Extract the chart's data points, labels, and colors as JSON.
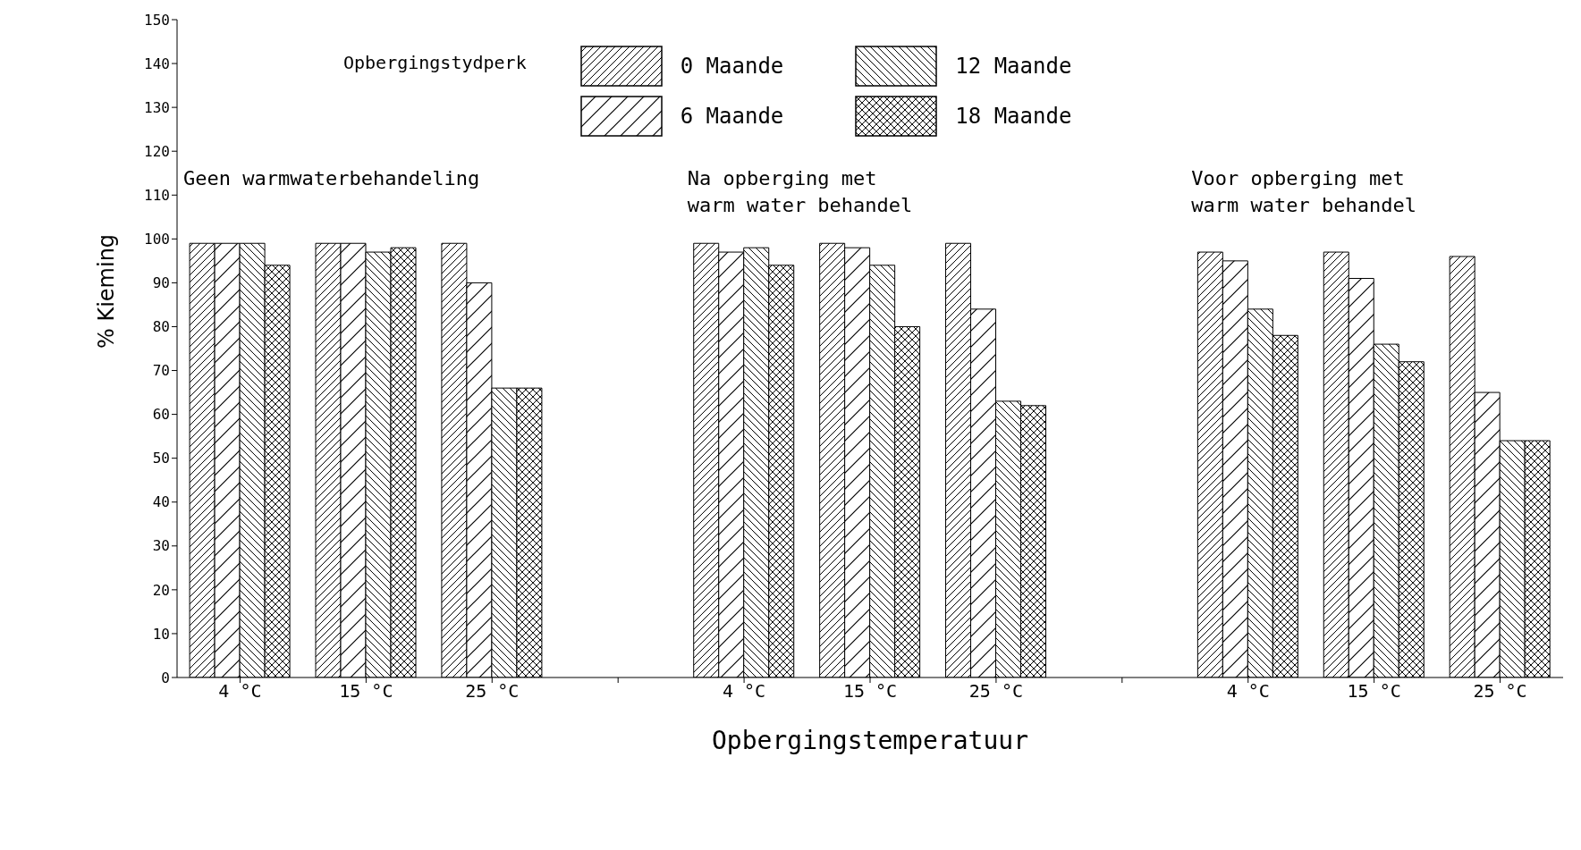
{
  "chart_data": {
    "type": "bar",
    "xlabel": "Opbergingstemperatuur",
    "ylabel": "% Kieming",
    "legend_title": "Opbergingstydperk",
    "legend": "top",
    "categories": [
      "4 °C",
      "15 °C",
      "25 °C",
      null,
      "4 °C",
      "15 °C",
      "25 °C",
      null,
      "4 °C",
      "15 °C",
      "25 °C"
    ],
    "series": [
      {
        "name": "0 Maande",
        "color": "#000000",
        "values": [
          99,
          99,
          99,
          null,
          99,
          99,
          99,
          null,
          97,
          97,
          96
        ]
      },
      {
        "name": "6 Maande",
        "color": "#000000",
        "values": [
          99,
          99,
          90,
          null,
          97,
          98,
          84,
          null,
          95,
          91,
          65
        ]
      },
      {
        "name": "12 Maande",
        "color": "#000000",
        "values": [
          99,
          97,
          66,
          null,
          98,
          94,
          63,
          null,
          84,
          76,
          54
        ]
      },
      {
        "name": "18 Maande",
        "color": "#000000",
        "values": [
          94,
          98,
          66,
          null,
          94,
          80,
          62,
          null,
          78,
          72,
          54
        ]
      }
    ],
    "annotations": [
      "Geen warmwaterbehandeling",
      "Na opberging met\nwarm water behandel",
      "Voor opberging met\nwarm water behandel"
    ],
    "ylim": [
      0,
      150
    ],
    "yticks": [
      0,
      10,
      20,
      30,
      40,
      50,
      60,
      70,
      80,
      90,
      100,
      110,
      120,
      130,
      140,
      150
    ],
    "grid": false
  }
}
